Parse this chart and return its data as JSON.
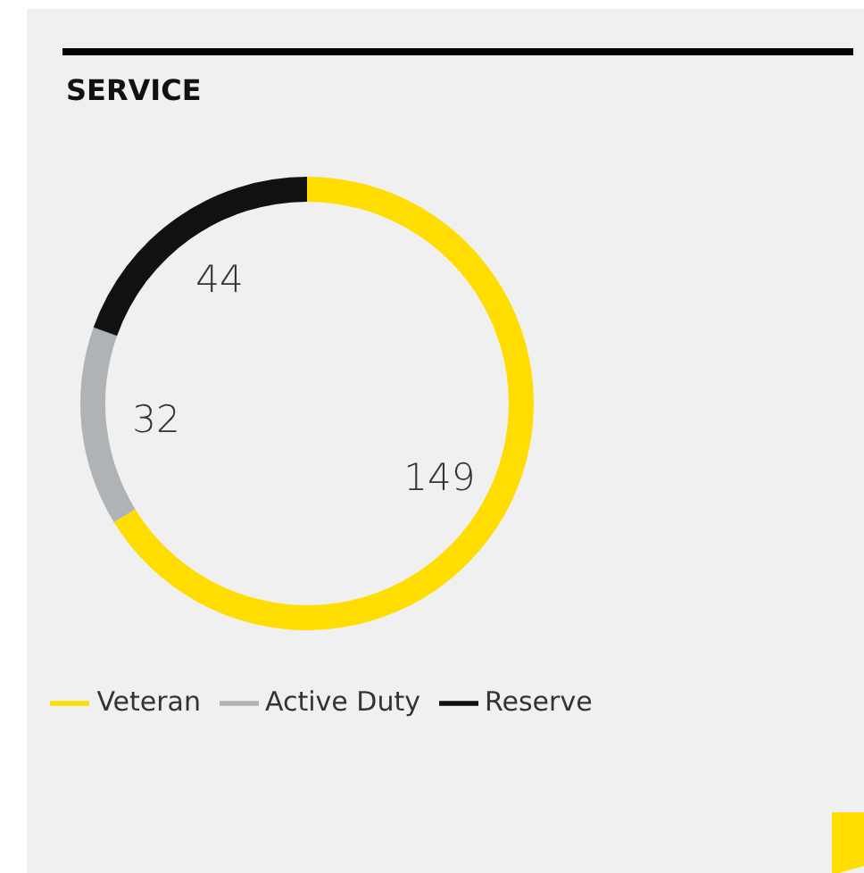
{
  "chart_data": {
    "type": "donut",
    "title": "SERVICE",
    "categories": [
      "Veteran",
      "Active Duty",
      "Reserve"
    ],
    "values": [
      149,
      32,
      44
    ],
    "colors": [
      "#ffdd00",
      "#b0b3b6",
      "#111111"
    ],
    "data_labels": true,
    "legend": "bottom"
  }
}
